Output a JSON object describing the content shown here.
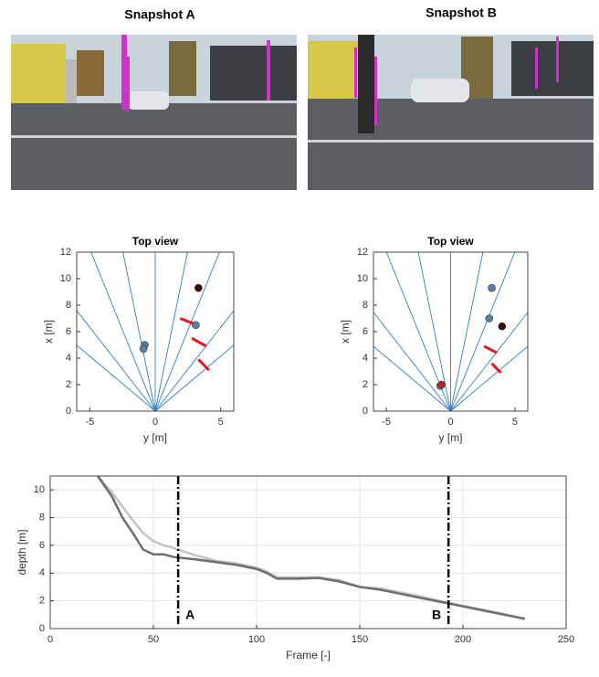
{
  "snapshots": [
    "Snapshot A",
    "Snapshot B"
  ],
  "chart_data": [
    {
      "type": "scatter",
      "title": "Top view",
      "xlabel": "y [m]",
      "ylabel": "x [m]",
      "xlim": [
        -6,
        6
      ],
      "ylim": [
        0,
        12
      ],
      "xticks": [
        -5,
        0,
        5
      ],
      "yticks": [
        0,
        2,
        4,
        6,
        8,
        10,
        12
      ],
      "series": [
        {
          "color": "#5b7fa0",
          "x": [
            -0.8,
            -0.9,
            3.1
          ],
          "y": [
            5.0,
            4.7,
            6.5
          ]
        },
        {
          "color": "#3a0a0a",
          "x": [
            3.3
          ],
          "y": [
            9.3
          ]
        }
      ],
      "segments": {
        "color": "#e8141e",
        "x1": [
          1.9,
          2.8,
          3.3
        ],
        "y1": [
          7.0,
          5.5,
          3.9
        ],
        "x2": [
          3.2,
          3.9,
          4.1
        ],
        "y2": [
          6.5,
          4.9,
          3.1
        ]
      }
    },
    {
      "type": "scatter",
      "title": "Top view",
      "xlabel": "y [m]",
      "ylabel": "x [m]",
      "xlim": [
        -6,
        6
      ],
      "ylim": [
        0,
        12
      ],
      "xticks": [
        -5,
        0,
        5
      ],
      "yticks": [
        0,
        2,
        4,
        6,
        8,
        10,
        12
      ],
      "series": [
        {
          "color": "#5b7fa0",
          "x": [
            3.2,
            3.0,
            -0.8
          ],
          "y": [
            9.3,
            7.0,
            1.9
          ]
        },
        {
          "color": "#3a0a0a",
          "x": [
            4.0
          ],
          "y": [
            6.4
          ]
        },
        {
          "color": "#c0202a",
          "x": [
            -0.7
          ],
          "y": [
            2.0
          ]
        }
      ],
      "segments": {
        "color": "#e8141e",
        "x1": [
          2.6,
          3.2
        ],
        "y1": [
          4.9,
          3.6
        ],
        "x2": [
          3.6,
          3.9
        ],
        "y2": [
          4.4,
          2.9
        ]
      }
    },
    {
      "type": "line",
      "xlabel": "Frame [-]",
      "ylabel": "depth [m]",
      "xlim": [
        0,
        250
      ],
      "ylim": [
        0,
        11
      ],
      "xticks": [
        0,
        50,
        100,
        150,
        200,
        250
      ],
      "yticks": [
        0,
        2,
        4,
        6,
        8,
        10
      ],
      "grid": true,
      "x": [
        23,
        30,
        35,
        40,
        45,
        50,
        55,
        60,
        70,
        80,
        90,
        100,
        105,
        110,
        120,
        130,
        140,
        150,
        160,
        170,
        180,
        190,
        200,
        210,
        220,
        230
      ],
      "series": [
        {
          "color": "#c4c4c4",
          "values": [
            11,
            9.8,
            8.8,
            7.8,
            6.9,
            6.3,
            6.0,
            5.8,
            5.3,
            4.9,
            4.7,
            4.4,
            4.1,
            3.7,
            3.7,
            3.7,
            3.5,
            3.0,
            2.9,
            2.6,
            2.3,
            1.95,
            1.65,
            1.35,
            1.05,
            0.7
          ]
        },
        {
          "color": "#6e6e6e",
          "values": [
            11,
            9.5,
            8.0,
            6.9,
            5.7,
            5.35,
            5.35,
            5.15,
            5.0,
            4.8,
            4.6,
            4.3,
            4.0,
            3.6,
            3.6,
            3.65,
            3.4,
            3.0,
            2.8,
            2.5,
            2.2,
            1.9,
            1.6,
            1.3,
            1.0,
            0.7
          ]
        }
      ],
      "markers": [
        {
          "x": 62,
          "label": "A"
        },
        {
          "x": 193,
          "label": "B"
        }
      ]
    }
  ]
}
